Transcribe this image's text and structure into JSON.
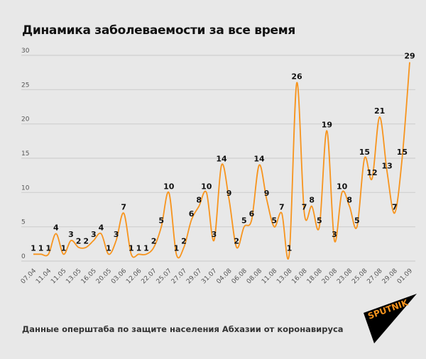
{
  "chart_data": {
    "type": "line",
    "title": "Динамика заболеваемости за все время",
    "xlabel": "",
    "ylabel": "",
    "ylim": [
      0,
      30
    ],
    "yticks": [
      0,
      5,
      10,
      15,
      20,
      25,
      30
    ],
    "grid": true,
    "x_tick_labels": [
      "07.04",
      "11.04",
      "11.05",
      "13.05",
      "16.05",
      "20.05",
      "03.06",
      "12.06",
      "22.07",
      "25.07",
      "27.07",
      "29.07",
      "31.07",
      "04.08",
      "06.08",
      "08.08",
      "11.08",
      "13.08",
      "16.08",
      "18.08",
      "20.08",
      "23.08",
      "25.08",
      "27.08",
      "29.08",
      "01.09"
    ],
    "values": [
      1,
      1,
      1,
      4,
      1,
      3,
      2,
      2,
      3,
      4,
      1,
      3,
      7,
      1,
      1,
      1,
      2,
      5,
      10,
      1,
      2,
      6,
      8,
      10,
      3,
      14,
      9,
      2,
      5,
      6,
      14,
      9,
      5,
      7,
      1,
      26,
      7,
      8,
      5,
      19,
      3,
      10,
      8,
      5,
      15,
      12,
      21,
      13,
      7,
      15,
      29
    ],
    "line_color": "#f7941d",
    "source": "Данные оперштаба по защите населения Абхазии от коронавируса"
  },
  "logo": {
    "text": "SPUTNIK",
    "color": "#f7941d"
  }
}
